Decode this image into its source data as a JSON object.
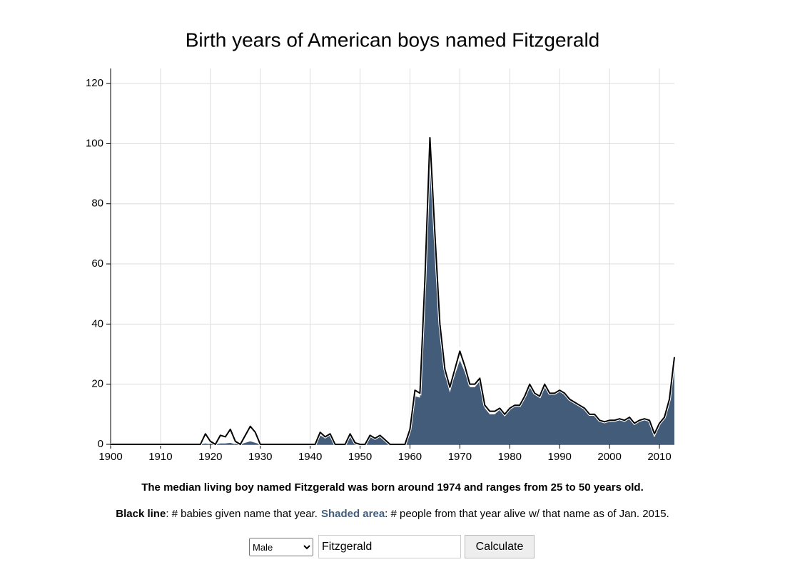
{
  "chart_data": {
    "type": "area",
    "title": "Birth years of American boys named Fitzgerald",
    "x": [
      1900,
      1901,
      1902,
      1903,
      1904,
      1905,
      1906,
      1907,
      1908,
      1909,
      1910,
      1911,
      1912,
      1913,
      1914,
      1915,
      1916,
      1917,
      1918,
      1919,
      1920,
      1921,
      1922,
      1923,
      1924,
      1925,
      1926,
      1927,
      1928,
      1929,
      1930,
      1931,
      1932,
      1933,
      1934,
      1935,
      1936,
      1937,
      1938,
      1939,
      1940,
      1941,
      1942,
      1943,
      1944,
      1945,
      1946,
      1947,
      1948,
      1949,
      1950,
      1951,
      1952,
      1953,
      1954,
      1955,
      1956,
      1957,
      1958,
      1959,
      1960,
      1961,
      1962,
      1963,
      1964,
      1965,
      1966,
      1967,
      1968,
      1969,
      1970,
      1971,
      1972,
      1973,
      1974,
      1975,
      1976,
      1977,
      1978,
      1979,
      1980,
      1981,
      1982,
      1983,
      1984,
      1985,
      1986,
      1987,
      1988,
      1989,
      1990,
      1991,
      1992,
      1993,
      1994,
      1995,
      1996,
      1997,
      1998,
      1999,
      2000,
      2001,
      2002,
      2003,
      2004,
      2005,
      2006,
      2007,
      2008,
      2009,
      2010,
      2011,
      2012,
      2013
    ],
    "series": [
      {
        "name": "Shaded area",
        "description": ": # people from that year alive w/ that name as of Jan. 2015.",
        "kind": "area",
        "color": "#435c7a",
        "values": [
          0,
          0,
          0,
          0,
          0,
          0,
          0,
          0,
          0,
          0,
          0,
          0,
          0,
          0,
          0,
          0,
          0,
          0,
          0,
          0.3,
          0,
          0,
          0.3,
          0.3,
          0.5,
          0,
          0,
          0.5,
          1,
          0.5,
          0,
          0,
          0,
          0,
          0,
          0,
          0,
          0,
          0,
          0,
          0,
          0,
          3,
          2,
          3,
          0,
          0,
          0,
          3,
          0,
          0,
          0,
          2.5,
          1.8,
          2.7,
          1.2,
          0,
          0,
          0,
          0,
          4.5,
          16,
          15.5,
          52,
          95,
          65,
          37,
          23,
          18,
          23,
          28,
          24,
          19,
          19,
          21,
          12,
          10,
          10,
          11.5,
          9.5,
          11.5,
          12.5,
          12.5,
          15.5,
          19.5,
          16.5,
          15.5,
          19.5,
          16.5,
          16.5,
          17.5,
          16.5,
          14.5,
          13.5,
          12.5,
          11.5,
          9.5,
          9.5,
          7.5,
          7,
          7.5,
          7.5,
          8,
          7.5,
          8.5,
          6.5,
          7.5,
          8,
          7.5,
          3,
          6.5,
          8.5,
          14.5,
          28.5
        ]
      },
      {
        "name": "Black line",
        "description": ": # babies given name that year.",
        "kind": "line",
        "color": "#000000",
        "values": [
          0,
          0,
          0,
          0,
          0,
          0,
          0,
          0,
          0,
          0,
          0,
          0,
          0,
          0,
          0,
          0,
          0,
          0,
          0,
          3.5,
          1,
          0,
          3,
          2.5,
          5,
          1,
          0,
          3,
          6,
          4,
          0,
          0,
          0,
          0,
          0,
          0,
          0,
          0,
          0,
          0,
          0,
          0,
          4,
          2.5,
          3.5,
          0,
          0,
          0,
          3.5,
          0.5,
          0,
          0,
          3,
          2,
          3,
          1.5,
          0,
          0,
          0,
          0,
          5,
          18,
          17,
          55,
          102,
          70,
          40,
          25,
          19,
          25,
          31,
          26,
          20,
          20,
          22,
          13,
          11,
          11,
          12,
          10,
          12,
          13,
          13,
          16,
          20,
          17,
          16,
          20,
          17,
          17,
          18,
          17,
          15,
          14,
          13,
          12,
          10,
          10,
          8,
          7.5,
          8,
          8,
          8.5,
          8,
          9,
          7,
          8,
          8.5,
          8,
          3.5,
          7,
          9,
          15,
          29
        ]
      }
    ],
    "xlim": [
      1900,
      2013
    ],
    "xticks": [
      1900,
      1910,
      1920,
      1930,
      1940,
      1950,
      1960,
      1970,
      1980,
      1990,
      2000,
      2010
    ],
    "ylim": [
      0,
      125
    ],
    "yticks": [
      0,
      20,
      40,
      60,
      80,
      100,
      120
    ],
    "grid": true
  },
  "note": "The median living boy named Fitzgerald was born around 1974 and ranges from 25 to 50 years old.",
  "controls": {
    "gender": "Male",
    "name": "Fitzgerald",
    "button": "Calculate"
  }
}
